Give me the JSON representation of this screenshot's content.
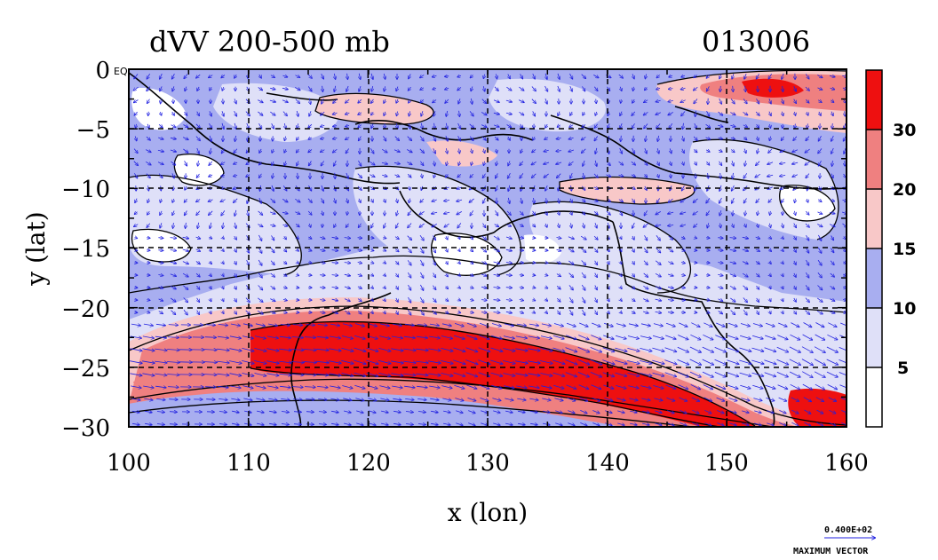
{
  "header": {
    "title": "dVV 200-500 mb",
    "code": "013006"
  },
  "axes": {
    "xlabel": "x (lon)",
    "ylabel": "y (lat)",
    "x_ticks": [
      "100",
      "110",
      "120",
      "130",
      "140",
      "150",
      "160"
    ],
    "y_ticks": [
      "0",
      "−5",
      "−10",
      "−15",
      "−20",
      "−25",
      "−30"
    ],
    "x_range": [
      100,
      160
    ],
    "y_range": [
      -30,
      0
    ],
    "grid": "dashed"
  },
  "colorbar": {
    "labels": [
      "30",
      "20",
      "15",
      "10",
      "5"
    ],
    "levels": [
      0,
      5,
      10,
      15,
      20,
      30,
      40
    ],
    "colors": [
      "#ffffff",
      "#dfe0f8",
      "#a8aef0",
      "#f8c8c8",
      "#ef8080",
      "#ee1010"
    ]
  },
  "vector_key": {
    "value": "0.400E+02",
    "label": "MAXIMUM VECTOR"
  },
  "stamp": "EQ",
  "colors": {
    "axis": "#000000",
    "vector": "#2020e0",
    "jet": "#ee1010",
    "light_blue": "#dfe0f8",
    "mid_blue": "#a8aef0",
    "light_red": "#f8c8c8",
    "mid_red": "#ef8080"
  }
}
